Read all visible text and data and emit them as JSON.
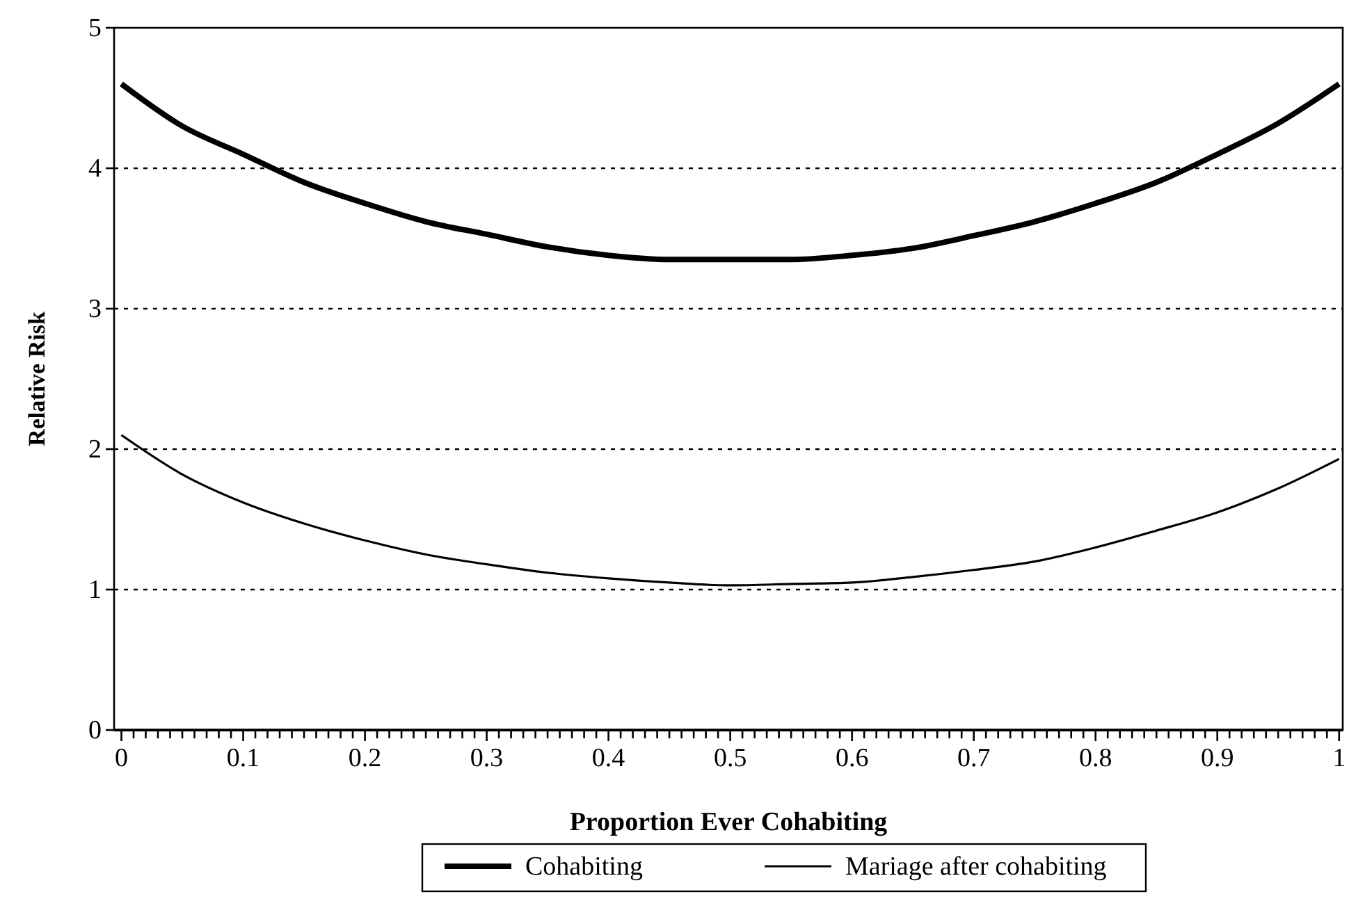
{
  "chart_data": {
    "type": "line",
    "xlabel": "Proportion Ever Cohabiting",
    "ylabel": "Relative Risk",
    "x": [
      0,
      0.05,
      0.1,
      0.15,
      0.2,
      0.25,
      0.3,
      0.35,
      0.4,
      0.45,
      0.5,
      0.55,
      0.6,
      0.65,
      0.7,
      0.75,
      0.8,
      0.85,
      0.9,
      0.95,
      1
    ],
    "series": [
      {
        "name": "Cohabiting",
        "color": "#000000",
        "values": [
          4.6,
          4.3,
          4.1,
          3.9,
          3.75,
          3.62,
          3.53,
          3.44,
          3.38,
          3.35,
          3.35,
          3.35,
          3.38,
          3.43,
          3.52,
          3.62,
          3.75,
          3.9,
          4.1,
          4.32,
          4.6
        ]
      },
      {
        "name": "Mariage after cohabiting",
        "color": "#000000",
        "values": [
          2.1,
          1.82,
          1.62,
          1.47,
          1.35,
          1.25,
          1.18,
          1.12,
          1.08,
          1.05,
          1.03,
          1.04,
          1.05,
          1.09,
          1.14,
          1.2,
          1.3,
          1.42,
          1.55,
          1.72,
          1.93
        ]
      }
    ],
    "xlim": [
      -0.006,
      1.003
    ],
    "ylim": [
      0,
      5
    ],
    "xticks": [
      0,
      {
        "value": 0.01,
        "label": null
      },
      {
        "value": 0.02,
        "label": null
      },
      {
        "value": 0.03,
        "label": null
      },
      {
        "value": 0.04,
        "label": null
      },
      {
        "value": 0.05,
        "label": null
      },
      {
        "value": 0.06,
        "label": null
      },
      {
        "value": 0.07,
        "label": null
      },
      {
        "value": 0.08,
        "label": null
      },
      {
        "value": 0.09,
        "label": null
      },
      0.1,
      {
        "value": 0.11,
        "label": null
      },
      {
        "value": 0.12,
        "label": null
      },
      {
        "value": 0.13,
        "label": null
      },
      {
        "value": 0.14,
        "label": null
      },
      {
        "value": 0.15,
        "label": null
      },
      {
        "value": 0.16,
        "label": null
      },
      {
        "value": 0.17,
        "label": null
      },
      {
        "value": 0.18,
        "label": null
      },
      {
        "value": 0.19,
        "label": null
      },
      0.2,
      {
        "value": 0.21,
        "label": null
      },
      {
        "value": 0.22,
        "label": null
      },
      {
        "value": 0.23,
        "label": null
      },
      {
        "value": 0.24,
        "label": null
      },
      {
        "value": 0.25,
        "label": null
      },
      {
        "value": 0.26,
        "label": null
      },
      {
        "value": 0.27,
        "label": null
      },
      {
        "value": 0.28,
        "label": null
      },
      {
        "value": 0.29,
        "label": null
      },
      0.3,
      {
        "value": 0.31,
        "label": null
      },
      {
        "value": 0.32,
        "label": null
      },
      {
        "value": 0.33,
        "label": null
      },
      {
        "value": 0.34,
        "label": null
      },
      {
        "value": 0.35,
        "label": null
      },
      {
        "value": 0.36,
        "label": null
      },
      {
        "value": 0.37,
        "label": null
      },
      {
        "value": 0.38,
        "label": null
      },
      {
        "value": 0.39,
        "label": null
      },
      0.4,
      {
        "value": 0.41,
        "label": null
      },
      {
        "value": 0.42,
        "label": null
      },
      {
        "value": 0.43,
        "label": null
      },
      {
        "value": 0.44,
        "label": null
      },
      {
        "value": 0.45,
        "label": null
      },
      {
        "value": 0.46,
        "label": null
      },
      {
        "value": 0.47,
        "label": null
      },
      {
        "value": 0.48,
        "label": null
      },
      {
        "value": 0.49,
        "label": null
      },
      0.5,
      {
        "value": 0.51,
        "label": null
      },
      {
        "value": 0.52,
        "label": null
      },
      {
        "value": 0.53,
        "label": null
      },
      {
        "value": 0.54,
        "label": null
      },
      {
        "value": 0.55,
        "label": null
      },
      {
        "value": 0.56,
        "label": null
      },
      {
        "value": 0.57,
        "label": null
      },
      {
        "value": 0.58,
        "label": null
      },
      {
        "value": 0.59,
        "label": null
      },
      0.6,
      {
        "value": 0.61,
        "label": null
      },
      {
        "value": 0.62,
        "label": null
      },
      {
        "value": 0.63,
        "label": null
      },
      {
        "value": 0.64,
        "label": null
      },
      {
        "value": 0.65,
        "label": null
      },
      {
        "value": 0.66,
        "label": null
      },
      {
        "value": 0.67,
        "label": null
      },
      {
        "value": 0.68,
        "label": null
      },
      {
        "value": 0.69,
        "label": null
      },
      0.7,
      {
        "value": 0.71,
        "label": null
      },
      {
        "value": 0.72,
        "label": null
      },
      {
        "value": 0.73,
        "label": null
      },
      {
        "value": 0.74,
        "label": null
      },
      {
        "value": 0.75,
        "label": null
      },
      {
        "value": 0.76,
        "label": null
      },
      {
        "value": 0.77,
        "label": null
      },
      {
        "value": 0.78,
        "label": null
      },
      {
        "value": 0.79,
        "label": null
      },
      0.8,
      {
        "value": 0.81,
        "label": null
      },
      {
        "value": 0.82,
        "label": null
      },
      {
        "value": 0.83,
        "label": null
      },
      {
        "value": 0.84,
        "label": null
      },
      {
        "value": 0.85,
        "label": null
      },
      {
        "value": 0.86,
        "label": null
      },
      {
        "value": 0.87,
        "label": null
      },
      {
        "value": 0.88,
        "label": null
      },
      {
        "value": 0.89,
        "label": null
      },
      0.9,
      {
        "value": 0.91,
        "label": null
      },
      {
        "value": 0.92,
        "label": null
      },
      {
        "value": 0.93,
        "label": null
      },
      {
        "value": 0.94,
        "label": null
      },
      {
        "value": 0.95,
        "label": null
      },
      {
        "value": 0.96,
        "label": null
      },
      {
        "value": 0.97,
        "label": null
      },
      {
        "value": 0.98,
        "label": null
      },
      {
        "value": 0.99,
        "label": null
      },
      1
    ],
    "yticks": [
      0,
      1,
      2,
      3,
      4,
      5
    ],
    "grid": "y",
    "line_style": "solid",
    "marker": "none",
    "legend": "bottom"
  }
}
